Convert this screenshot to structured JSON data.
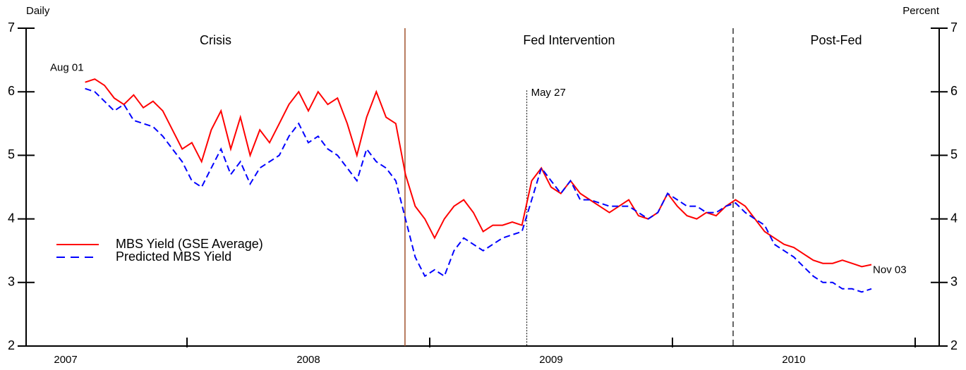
{
  "chart_data": {
    "type": "line",
    "left_axis_label": "Daily",
    "right_axis_label": "Percent",
    "regions": [
      "Crisis",
      "Fed Intervention",
      "Post-Fed"
    ],
    "dividers": [
      2008.898,
      2010.25
    ],
    "event": {
      "label": "May 27",
      "x": 2009.4
    },
    "start_label": "Aug 01",
    "end_label": "Nov 03",
    "xlim": [
      2007.337,
      2011.099
    ],
    "xticks": [
      {
        "value": 2007.5,
        "label": "2007"
      },
      {
        "value": 2008.5,
        "label": "2008"
      },
      {
        "value": 2009.5,
        "label": "2009"
      },
      {
        "value": 2010.5,
        "label": "2010"
      }
    ],
    "ylim": [
      2,
      7
    ],
    "yticks": [
      2,
      3,
      4,
      5,
      6,
      7
    ],
    "legend": "left",
    "x": [
      2007.58,
      2007.62,
      2007.66,
      2007.7,
      2007.74,
      2007.78,
      2007.82,
      2007.86,
      2007.9,
      2007.94,
      2007.98,
      2008.02,
      2008.06,
      2008.1,
      2008.14,
      2008.18,
      2008.22,
      2008.26,
      2008.3,
      2008.34,
      2008.38,
      2008.42,
      2008.46,
      2008.5,
      2008.54,
      2008.58,
      2008.62,
      2008.66,
      2008.7,
      2008.74,
      2008.78,
      2008.82,
      2008.86,
      2008.9,
      2008.94,
      2008.98,
      2009.02,
      2009.06,
      2009.1,
      2009.14,
      2009.18,
      2009.22,
      2009.26,
      2009.3,
      2009.34,
      2009.38,
      2009.42,
      2009.46,
      2009.5,
      2009.54,
      2009.58,
      2009.62,
      2009.66,
      2009.7,
      2009.74,
      2009.78,
      2009.82,
      2009.86,
      2009.9,
      2009.94,
      2009.98,
      2010.02,
      2010.06,
      2010.1,
      2010.14,
      2010.18,
      2010.22,
      2010.26,
      2010.3,
      2010.34,
      2010.38,
      2010.42,
      2010.46,
      2010.5,
      2010.54,
      2010.58,
      2010.62,
      2010.66,
      2010.7,
      2010.74,
      2010.78,
      2010.82
    ],
    "series": [
      {
        "name": "MBS Yield (GSE Average)",
        "color": "#ff0000",
        "dash": false,
        "values": [
          6.15,
          6.2,
          6.1,
          5.9,
          5.8,
          5.95,
          5.75,
          5.85,
          5.7,
          5.4,
          5.1,
          5.2,
          4.9,
          5.4,
          5.7,
          5.1,
          5.6,
          5.0,
          5.4,
          5.2,
          5.5,
          5.8,
          6.0,
          5.7,
          6.0,
          5.8,
          5.9,
          5.5,
          5.0,
          5.6,
          6.0,
          5.6,
          5.5,
          4.7,
          4.2,
          4.0,
          3.7,
          4.0,
          4.2,
          4.3,
          4.1,
          3.8,
          3.9,
          3.9,
          3.95,
          3.9,
          4.6,
          4.8,
          4.5,
          4.4,
          4.6,
          4.4,
          4.3,
          4.2,
          4.1,
          4.2,
          4.3,
          4.05,
          4.0,
          4.1,
          4.4,
          4.2,
          4.05,
          4.0,
          4.1,
          4.05,
          4.2,
          4.3,
          4.2,
          4.0,
          3.8,
          3.7,
          3.6,
          3.55,
          3.45,
          3.35,
          3.3,
          3.3,
          3.35,
          3.3,
          3.25,
          3.28
        ]
      },
      {
        "name": "Predicted MBS Yield",
        "color": "#0000ff",
        "dash": true,
        "values": [
          6.05,
          6.0,
          5.85,
          5.7,
          5.8,
          5.55,
          5.5,
          5.45,
          5.3,
          5.1,
          4.9,
          4.6,
          4.5,
          4.8,
          5.1,
          4.7,
          4.9,
          4.55,
          4.8,
          4.9,
          5.0,
          5.3,
          5.5,
          5.2,
          5.3,
          5.1,
          5.0,
          4.8,
          4.6,
          5.1,
          4.9,
          4.8,
          4.6,
          4.0,
          3.4,
          3.1,
          3.2,
          3.1,
          3.5,
          3.7,
          3.6,
          3.5,
          3.6,
          3.7,
          3.75,
          3.8,
          4.3,
          4.8,
          4.6,
          4.4,
          4.6,
          4.3,
          4.3,
          4.25,
          4.2,
          4.2,
          4.2,
          4.1,
          4.0,
          4.1,
          4.4,
          4.3,
          4.2,
          4.2,
          4.1,
          4.1,
          4.2,
          4.25,
          4.1,
          4.0,
          3.9,
          3.6,
          3.5,
          3.4,
          3.25,
          3.1,
          3.0,
          3.0,
          2.9,
          2.9,
          2.85,
          2.9
        ]
      }
    ]
  }
}
